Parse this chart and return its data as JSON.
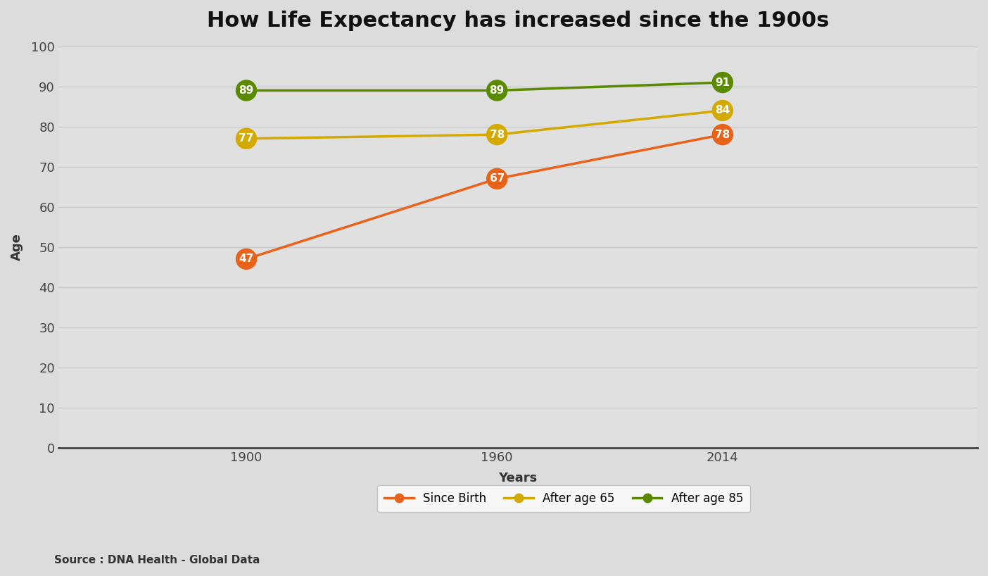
{
  "title": "How Life Expectancy has increased since the 1900s",
  "xlabel": "Years",
  "ylabel": "Age",
  "source_text": "Source : DNA Health - Global Data",
  "x_values": [
    1900,
    1960,
    2014
  ],
  "x_tick_labels": [
    "1900",
    "1960",
    "2014"
  ],
  "series": [
    {
      "name": "Since Birth",
      "values": [
        47,
        67,
        78
      ],
      "color": "#E8621A"
    },
    {
      "name": "After age 65",
      "values": [
        77,
        78,
        84
      ],
      "color": "#D4AA00"
    },
    {
      "name": "After age 85",
      "values": [
        89,
        89,
        91
      ],
      "color": "#5A8A00"
    }
  ],
  "ylim": [
    0,
    100
  ],
  "yticks": [
    0,
    10,
    20,
    30,
    40,
    50,
    60,
    70,
    80,
    90,
    100
  ],
  "background_color": "#DCDCDC",
  "plot_background_color": "#E0E0E0",
  "grid_color": "#C8C8C8",
  "title_fontsize": 22,
  "axis_label_fontsize": 13,
  "tick_fontsize": 13,
  "legend_fontsize": 12,
  "annotation_fontsize": 11,
  "marker_size": 480,
  "line_width": 2.5
}
